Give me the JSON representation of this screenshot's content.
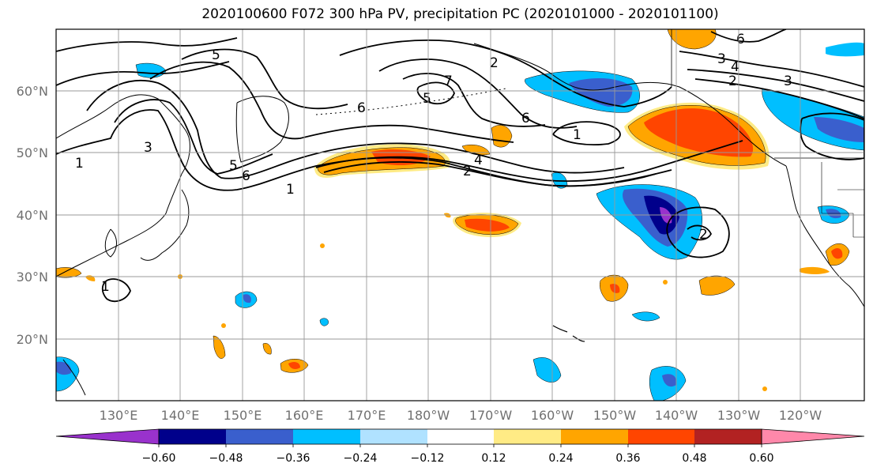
{
  "title": "2020100600 F072 300 hPa PV, precipitation PC (2020101000 - 2020101100)",
  "map": {
    "lat_labels": [
      "60°N",
      "50°N",
      "40°N",
      "30°N",
      "20°N"
    ],
    "lon_labels": [
      "130°E",
      "140°E",
      "150°E",
      "160°E",
      "170°E",
      "180°W",
      "170°W",
      "160°W",
      "150°W",
      "140°W",
      "130°W",
      "120°W"
    ],
    "contour_labels": [
      "5",
      "6",
      "7",
      "5",
      "6",
      "3",
      "5",
      "6",
      "1",
      "4",
      "2",
      "1",
      "2",
      "3",
      "4",
      "6",
      "2",
      "3",
      "1",
      "2",
      "1"
    ],
    "grid": true
  },
  "colorbar": {
    "tick_labels": [
      "−0.60",
      "−0.48",
      "−0.36",
      "−0.24",
      "−0.12",
      "0.12",
      "0.24",
      "0.36",
      "0.48",
      "0.60"
    ],
    "colors": [
      "#9932cc",
      "#00008b",
      "#3a5fcd",
      "#00bfff",
      "#b0e2ff",
      "#ffffff",
      "#ffeb85",
      "#ffa500",
      "#ff4500",
      "#b22222",
      "#ff88aa"
    ]
  }
}
